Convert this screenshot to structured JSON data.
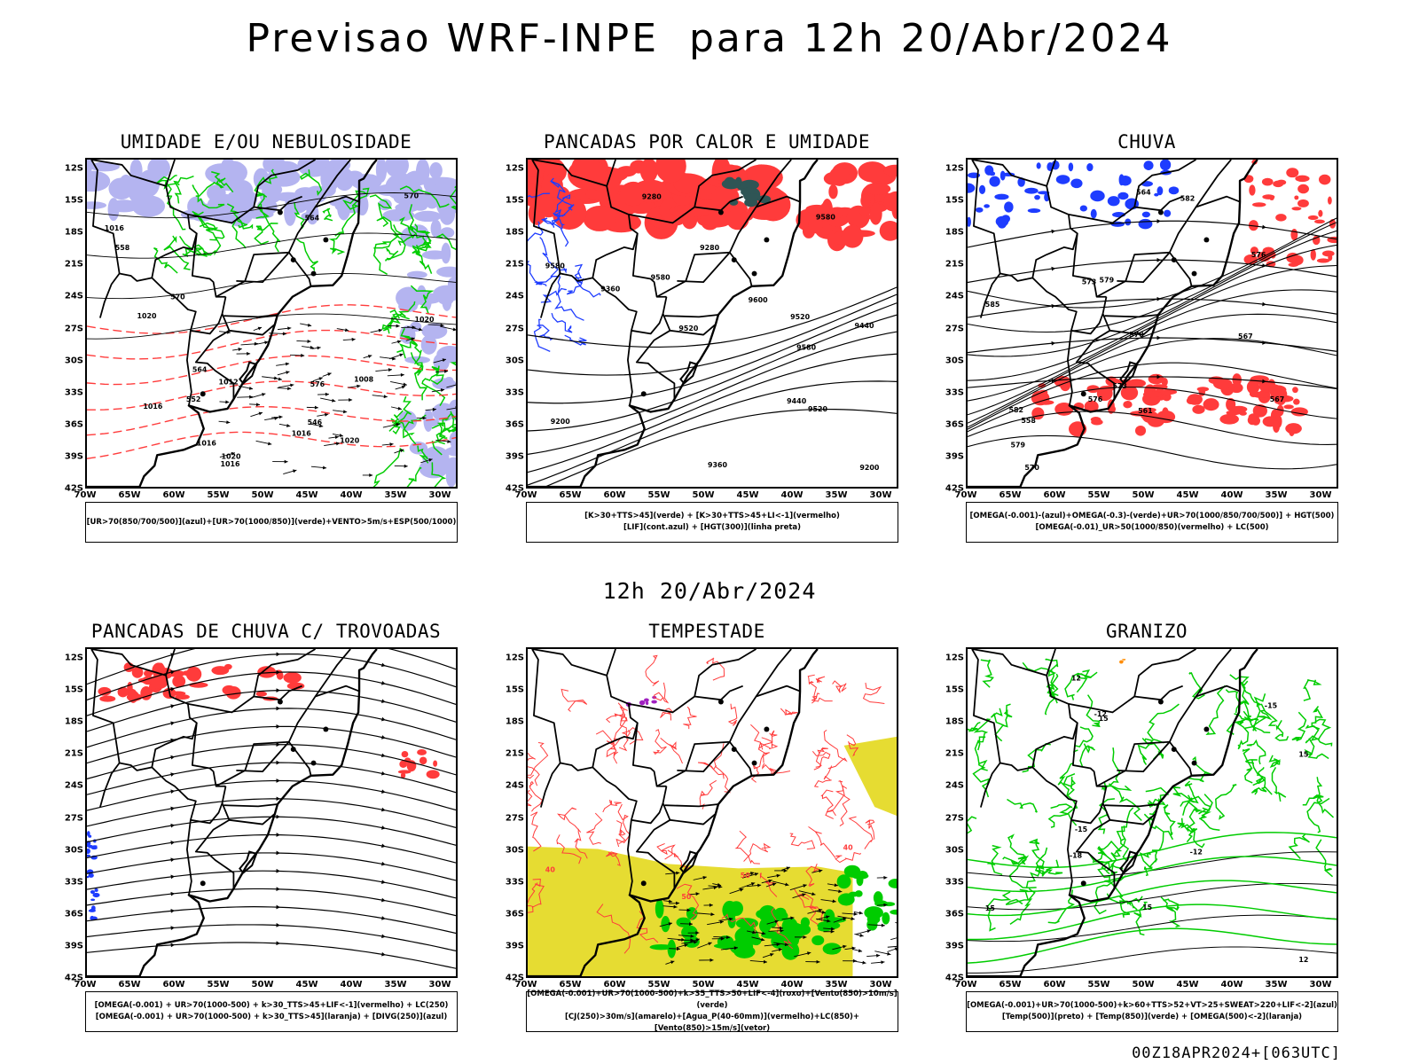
{
  "title": "Previsao WRF-INPE  para 12h 20/Abr/2024",
  "mid_label": "12h 20/Abr/2024",
  "footer": "00Z18APR2024+[063UTC]",
  "lat_labels": [
    "12S",
    "15S",
    "18S",
    "21S",
    "24S",
    "27S",
    "30S",
    "33S",
    "36S",
    "39S",
    "42S"
  ],
  "lon_labels": [
    "70W",
    "65W",
    "60W",
    "55W",
    "50W",
    "45W",
    "40W",
    "35W",
    "30W"
  ],
  "panels": [
    {
      "title": "UMIDADE E/OU NEBULOSIDADE",
      "caption_lines": [
        "[UR>70(850/700/500)](azul)+[UR>70(1000/850)](verde)+VENTO>5m/s+ESP(500/1000)"
      ],
      "contour_labels": [
        "1016",
        "1016",
        "1016",
        "1020",
        "1020",
        "1020",
        "1020",
        "1016",
        "1016",
        "1012",
        "1008",
        "570",
        "576",
        "570",
        "564",
        "558",
        "552",
        "546",
        "564"
      ]
    },
    {
      "title": "PANCADAS POR CALOR E UMIDADE",
      "caption_lines": [
        "[K>30+TTS>45](verde) + [K>30+TTS>45+LI<-1](vermelho)",
        "[LIF](cont.azul) + [HGT(300)](linha preta)"
      ],
      "contour_labels": [
        "9580",
        "9580",
        "9580",
        "9580",
        "9600",
        "9520",
        "9440",
        "9520",
        "9520",
        "9440",
        "9360",
        "9360",
        "9280",
        "9280",
        "9200",
        "9200"
      ]
    },
    {
      "title": "CHUVA",
      "caption_lines": [
        "[OMEGA(-0.001)-(azul)+OMEGA(-0.3)-(verde)+UR>70(1000/850/700/500)] + HGT(500)",
        "[OMEGA(-0.01)_UR>50(1000/850)(vermelho) + LC(500)"
      ],
      "contour_labels": [
        "585",
        "582",
        "579",
        "576",
        "573",
        "570",
        "567",
        "564",
        "561",
        "558",
        "582",
        "579",
        "576",
        "573",
        "570",
        "567"
      ]
    },
    {
      "title": "PANCADAS DE CHUVA C/ TROVOADAS",
      "caption_lines": [
        "[OMEGA(-0.001) + UR>70(1000-500) + k>30_TTS>45+LIF<-1](vermelho) + LC(250)",
        "[OMEGA(-0.001) + UR>70(1000-500) + k>30_TTS>45](laranja) + [DIVG(250)](azul)"
      ],
      "contour_labels": []
    },
    {
      "title": "TEMPESTADE",
      "caption_lines": [
        "[OMEGA(-0.001)+UR>70(1000-500)+k>35_TTS>50+LIF<-4](roxo)+[Vento(850)>10m/s](verde)",
        "[CJ(250)>30m/s](amarelo)+[Agua_P(40-60mm)](vermelho)+LC(850)+[Vento(850)>15m/s](vetor)"
      ],
      "contour_labels": [
        "40",
        "50",
        "50",
        "40"
      ]
    },
    {
      "title": "GRANIZO",
      "caption_lines": [
        "[OMEGA(-0.001)+UR>70(1000-500)+k>60+TTS>52+VT>25+SWEAT>220+LIF<-2](azul)",
        "[Temp(500)](preto) + [Temp(850)](verde) + [OMEGA(500)<-2](laranja)"
      ],
      "contour_labels": [
        "15",
        "15",
        "12",
        "15",
        "-12",
        "-15",
        "-18",
        "-12",
        "15",
        "12",
        "-15"
      ]
    }
  ],
  "colors": {
    "coast": "#000000",
    "red": "#ff3b3b",
    "green": "#00cc00",
    "blue": "#1e3cff",
    "lavender": "#b4b4f0",
    "dark_teal": "#2f5555",
    "yellow": "#e6dc32",
    "orange": "#ff8c00",
    "purple": "#a020c0"
  }
}
